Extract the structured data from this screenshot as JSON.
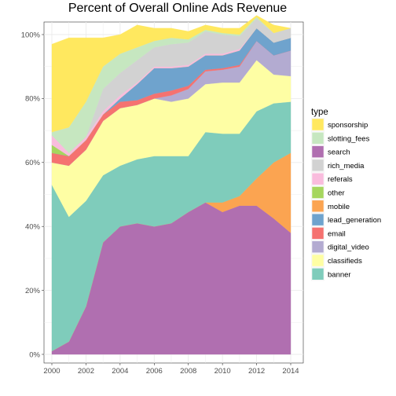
{
  "chart_data": {
    "type": "area",
    "stacked": true,
    "normalized": true,
    "title": "Percent of Overall Online Ads Revenue",
    "xlabel": "",
    "ylabel": "",
    "x": [
      2000,
      2001,
      2002,
      2003,
      2004,
      2005,
      2006,
      2007,
      2008,
      2009,
      2010,
      2011,
      2012,
      2013,
      2014
    ],
    "xlim": [
      2000,
      2014
    ],
    "x_ticks": [
      "2000",
      "2002",
      "2004",
      "2006",
      "2008",
      "2010",
      "2012",
      "2014"
    ],
    "ylim": [
      0,
      1
    ],
    "y_ticks": [
      "0%",
      "20%",
      "40%",
      "60%",
      "80%",
      "100%"
    ],
    "grid": true,
    "legend": {
      "title": "type",
      "placement": "right"
    },
    "series": [
      {
        "name": "search",
        "color": "#b06fb0",
        "values": [
          0.01,
          0.04,
          0.15,
          0.35,
          0.4,
          0.41,
          0.4,
          0.41,
          0.445,
          0.475,
          0.445,
          0.465,
          0.465,
          0.425,
          0.38
        ]
      },
      {
        "name": "mobile",
        "color": "#fba451",
        "values": [
          0,
          0,
          0,
          0,
          0,
          0,
          0,
          0,
          0,
          0,
          0.03,
          0.03,
          0.085,
          0.175,
          0.25
        ]
      },
      {
        "name": "banner",
        "color": "#7fccbb",
        "values": [
          0.52,
          0.39,
          0.33,
          0.21,
          0.19,
          0.2,
          0.22,
          0.21,
          0.175,
          0.22,
          0.215,
          0.195,
          0.21,
          0.185,
          0.16
        ]
      },
      {
        "name": "classifieds",
        "color": "#fefea4",
        "values": [
          0.07,
          0.16,
          0.16,
          0.17,
          0.18,
          0.17,
          0.18,
          0.17,
          0.18,
          0.15,
          0.16,
          0.16,
          0.16,
          0.09,
          0.08
        ]
      },
      {
        "name": "digital_video",
        "color": "#b3abd1",
        "values": [
          0,
          0,
          0,
          0,
          0,
          0,
          0,
          0.02,
          0.03,
          0.04,
          0.04,
          0.05,
          0.06,
          0.06,
          0.08
        ]
      },
      {
        "name": "email",
        "color": "#f57270",
        "values": [
          0.03,
          0.03,
          0.03,
          0.02,
          0.02,
          0.015,
          0.015,
          0.015,
          0.01,
          0.005,
          0.005,
          0.005,
          0,
          0,
          0
        ]
      },
      {
        "name": "lead_generation",
        "color": "#6fa3cd",
        "values": [
          0,
          0,
          0,
          0,
          0.01,
          0.05,
          0.08,
          0.07,
          0.06,
          0.045,
          0.04,
          0.045,
          0.04,
          0.04,
          0.04
        ]
      },
      {
        "name": "other",
        "color": "#a5d65e",
        "values": [
          0.025,
          0,
          0,
          0,
          0,
          0,
          0,
          0,
          0,
          0,
          0,
          0,
          0,
          0,
          0
        ]
      },
      {
        "name": "referals",
        "color": "#f9bcdd",
        "values": [
          0.03,
          0.01,
          0.01,
          0.01,
          0.01,
          0.005,
          0.005,
          0.005,
          0.005,
          0.005,
          0.005,
          0.005,
          0,
          0,
          0
        ]
      },
      {
        "name": "rich_media",
        "color": "#d2d2d2",
        "values": [
          0,
          0,
          0,
          0.07,
          0.07,
          0.07,
          0.06,
          0.07,
          0.07,
          0.07,
          0.06,
          0.04,
          0.03,
          0.03,
          0.03
        ]
      },
      {
        "name": "slotting_fees",
        "color": "#c6e7c0",
        "values": [
          0.01,
          0.08,
          0.11,
          0.07,
          0.06,
          0.04,
          0.02,
          0.02,
          0.01,
          0.005,
          0.005,
          0.005,
          0.005,
          0,
          0
        ]
      },
      {
        "name": "sponsorship",
        "color": "#ffe85f",
        "values": [
          0.275,
          0.28,
          0.2,
          0.09,
          0.06,
          0.07,
          0.04,
          0.03,
          0.025,
          0.015,
          0.015,
          0.02,
          0.005,
          0.025,
          0
        ]
      }
    ],
    "legend_order": [
      "sponsorship",
      "slotting_fees",
      "search",
      "rich_media",
      "referals",
      "other",
      "mobile",
      "lead_generation",
      "email",
      "digital_video",
      "classifieds",
      "banner"
    ]
  }
}
